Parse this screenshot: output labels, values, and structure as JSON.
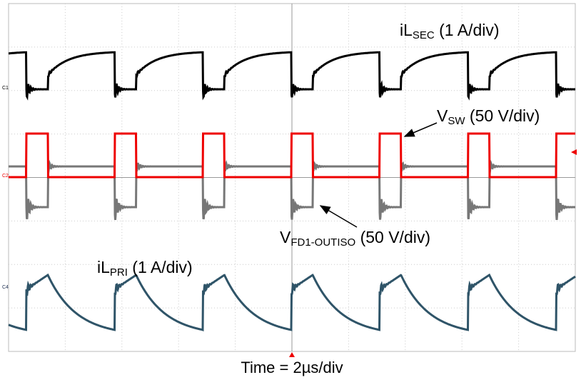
{
  "traces": [
    {
      "channel": "C1",
      "label": "iL",
      "sub": "SEC",
      "scale": " (1 A/div)"
    },
    {
      "channel": "C2",
      "label": "V",
      "sub": "SW",
      "scale": " (50 V/div)"
    },
    {
      "label": "V",
      "sub": "FD1-OUTISO",
      "scale": " (50 V/div)"
    },
    {
      "channel": "C4",
      "label": "iL",
      "sub": "PRI",
      "scale": " (1 A/div)"
    }
  ],
  "footer": "Time = 2µs/div"
}
